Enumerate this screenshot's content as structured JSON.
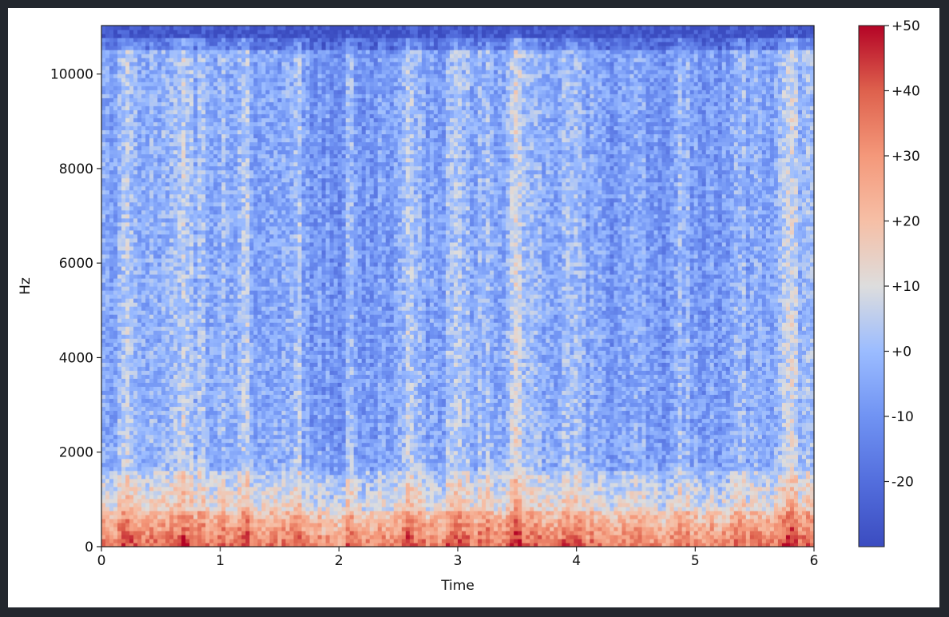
{
  "chart_data": {
    "type": "heatmap",
    "title": "",
    "xlabel": "Time",
    "ylabel": "Hz",
    "xlim": [
      0,
      6
    ],
    "ylim": [
      0,
      11025
    ],
    "x_ticks": [
      0,
      1,
      2,
      3,
      4,
      5,
      6
    ],
    "x_tick_labels": [
      "0",
      "1",
      "2",
      "3",
      "4",
      "5",
      "6"
    ],
    "y_ticks": [
      0,
      2000,
      4000,
      6000,
      8000,
      10000
    ],
    "y_tick_labels": [
      "0",
      "2000",
      "4000",
      "6000",
      "8000",
      "10000"
    ],
    "colorbar": {
      "colormap": "coolwarm",
      "range": [
        -30,
        50
      ],
      "ticks": [
        50,
        40,
        30,
        20,
        10,
        0,
        -10,
        -20
      ],
      "tick_labels": [
        "+50",
        "+40",
        "+30",
        "+20",
        "+10",
        "+0",
        "-10",
        "-20"
      ],
      "low_color": "#3b4cc0",
      "mid_color": "#dddddd",
      "high_color": "#b40426"
    },
    "grid": false,
    "description_values": {
      "high_energy_band_hz": [
        0,
        800
      ],
      "high_energy_level_db": 35,
      "typical_mid_level_db": 0,
      "top_band_level_db": -28,
      "onset_times_s": [
        0.2,
        0.7,
        1.2,
        1.65,
        2.1,
        2.6,
        3.0,
        3.5,
        4.0,
        4.5,
        4.9,
        5.35,
        5.8
      ]
    }
  }
}
